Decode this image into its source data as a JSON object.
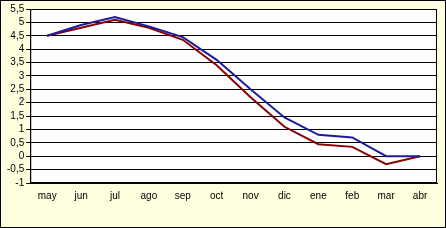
{
  "chart_data": {
    "type": "line",
    "categories": [
      "may",
      "jun",
      "jul",
      "ago",
      "sep",
      "oct",
      "nov",
      "dic",
      "ene",
      "feb",
      "mar",
      "abr"
    ],
    "series": [
      {
        "color": "#1c1c9c",
        "values": [
          4.5,
          4.9,
          5.2,
          4.85,
          4.45,
          3.6,
          2.5,
          1.45,
          0.8,
          0.7,
          0.0,
          0.0
        ]
      },
      {
        "color": "#8b0000",
        "values": [
          4.5,
          4.8,
          5.1,
          4.8,
          4.35,
          3.4,
          2.2,
          1.1,
          0.45,
          0.35,
          -0.3,
          0.0
        ]
      }
    ],
    "ylim": [
      -1,
      5.5
    ],
    "yticks": [
      {
        "value": -1,
        "label": "-1"
      },
      {
        "value": -0.5,
        "label": "-0,5"
      },
      {
        "value": 0,
        "label": "0"
      },
      {
        "value": 0.5,
        "label": "0,5"
      },
      {
        "value": 1,
        "label": "1"
      },
      {
        "value": 1.5,
        "label": "1,5"
      },
      {
        "value": 2,
        "label": "2"
      },
      {
        "value": 2.5,
        "label": "2,5"
      },
      {
        "value": 3,
        "label": "3"
      },
      {
        "value": 3.5,
        "label": "3,5"
      },
      {
        "value": 4,
        "label": "4"
      },
      {
        "value": 4.5,
        "label": "4,5"
      },
      {
        "value": 5,
        "label": "5"
      },
      {
        "value": 5.5,
        "label": "5,5"
      }
    ],
    "grid": true
  }
}
